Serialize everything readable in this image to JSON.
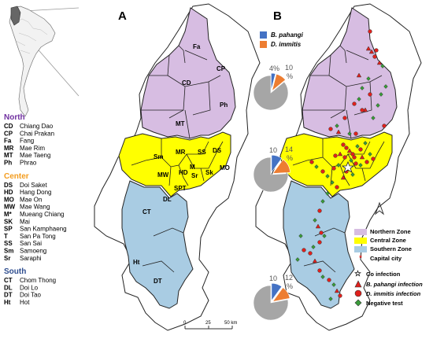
{
  "panel_a_label": "A",
  "panel_b_label": "B",
  "legend_regions": [
    {
      "title": "North",
      "color": "#7030a0",
      "items": [
        {
          "code": "CD",
          "name": "Chiang Dao"
        },
        {
          "code": "CP",
          "name": "Chai Prakan"
        },
        {
          "code": "Fa",
          "name": "Fang"
        },
        {
          "code": "MR",
          "name": "Mae Rim"
        },
        {
          "code": "MT",
          "name": "Mae Taeng"
        },
        {
          "code": "Ph",
          "name": "Phrao"
        }
      ]
    },
    {
      "title": "Center",
      "color": "#f39c1e",
      "items": [
        {
          "code": "DS",
          "name": "Doi Saket"
        },
        {
          "code": "HD",
          "name": "Hang Dong"
        },
        {
          "code": "MO",
          "name": "Mae On"
        },
        {
          "code": "MW",
          "name": "Mae Wang"
        },
        {
          "code": "M*",
          "name": "Mueang Chiang"
        },
        {
          "code": "SK",
          "name": "Mai"
        },
        {
          "code": "SP",
          "name": "San Kamphaeng"
        },
        {
          "code": "T",
          "name": "San Pa Tong"
        },
        {
          "code": "SS",
          "name": "San Sai"
        },
        {
          "code": "Sm",
          "name": "Samoeng"
        },
        {
          "code": "Sr",
          "name": "Saraphi"
        }
      ]
    },
    {
      "title": "South",
      "color": "#2e4d8f",
      "items": [
        {
          "code": "CT",
          "name": "Chom Thong"
        },
        {
          "code": "DL",
          "name": "Doi Lo"
        },
        {
          "code": "DT",
          "name": "Doi Tao"
        },
        {
          "code": "Ht",
          "name": "Hot"
        }
      ]
    }
  ],
  "map_labels": {
    "fa": "Fa",
    "cp": "CP",
    "cd": "CD",
    "ph": "Ph",
    "mt": "MT",
    "sm": "Sm",
    "mr": "MR",
    "ss": "SS",
    "ds": "DS",
    "mw": "MW",
    "hd": "HD",
    "m": "M",
    "sr": "Sr",
    "sk": "Sk",
    "mo": "MO",
    "spt": "SPT",
    "dl": "DL",
    "ct": "CT",
    "ht": "Ht",
    "dt": "DT"
  },
  "scale_bar": {
    "ticks": [
      "0",
      "25",
      "50 km"
    ]
  },
  "species_legend": [
    {
      "name": "B. pahangi",
      "color": "#4472c4"
    },
    {
      "name": "D. immitis",
      "color": "#ed7d31"
    }
  ],
  "pies": [
    {
      "zone": "Northern",
      "b_pahangi": 4,
      "d_immitis": 10,
      "label_b": "4%",
      "label_d": "10",
      "label_d_pct": "%"
    },
    {
      "zone": "Central",
      "b_pahangi": 10,
      "d_immitis": 14,
      "label_b": "10",
      "label_d": "14",
      "label_d_pct": "%"
    },
    {
      "zone": "Southern",
      "b_pahangi": 10,
      "d_immitis": 12,
      "label_b": "10",
      "label_d": "12",
      "label_d_pct": "%"
    }
  ],
  "zone_legend": [
    {
      "label": "Northern Zone",
      "color": "#d7bde2"
    },
    {
      "label": "Central Zone",
      "color": "#ffff00"
    },
    {
      "label": "Southern Zone",
      "color": "#a9cce3"
    }
  ],
  "symbol_legend": {
    "capital": "Capital city",
    "co": "Co infection",
    "pahangi": "B. pahangi infection",
    "immitis": "D. immitis infection",
    "negative": "Negative test"
  },
  "colors": {
    "north": "#d7bde2",
    "center": "#ffff00",
    "south": "#a9cce3",
    "pie_rest": "#a6a6a6"
  }
}
